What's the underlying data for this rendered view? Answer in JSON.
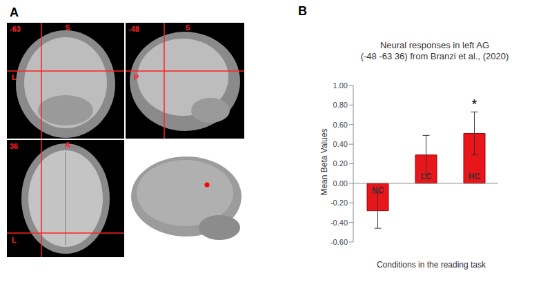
{
  "panel_A": {
    "label": "A",
    "views": [
      {
        "slice": "-63",
        "top": "S",
        "side": "L"
      },
      {
        "slice": "-48",
        "top": "S",
        "side": "P"
      },
      {
        "slice": "36",
        "top": "A",
        "side": "L"
      }
    ]
  },
  "panel_B": {
    "label": "B"
  },
  "chart_data": {
    "type": "bar",
    "title": [
      "Neural responses in left AG",
      "(-48 -63 36) from Branzi et al., (2020)"
    ],
    "x_label": "Conditions in the reading task",
    "y_label": "Mean Beta Values",
    "categories": [
      "NC",
      "LC",
      "HC"
    ],
    "values": [
      -0.28,
      0.29,
      0.51
    ],
    "errors": [
      0.18,
      0.2,
      0.22
    ],
    "color": "#e8151b",
    "ylim": [
      -0.6,
      1.0
    ],
    "yticks": [
      {
        "value": -0.6,
        "label": "-0.60"
      },
      {
        "value": -0.4,
        "label": "-0.40"
      },
      {
        "value": -0.2,
        "label": "-0.20"
      },
      {
        "value": 0,
        "label": "0.00"
      },
      {
        "value": 0.2,
        "label": "0.20"
      },
      {
        "value": 0.4,
        "label": "0.40"
      },
      {
        "value": 0.6,
        "label": "0.60"
      },
      {
        "value": 0.8,
        "label": "0.80"
      },
      {
        "value": 1.0,
        "label": "1.00"
      }
    ],
    "annotations": [
      {
        "category": "HC",
        "text": "*"
      }
    ],
    "grid": false
  }
}
